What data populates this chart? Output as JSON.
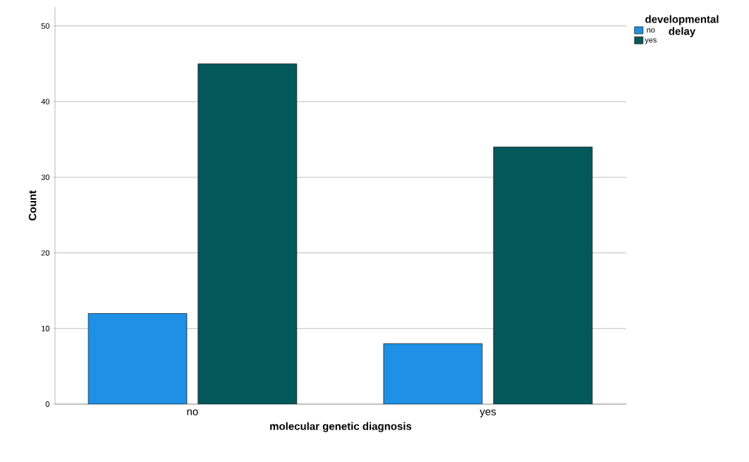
{
  "chart_data": {
    "type": "bar",
    "xlabel": "molecular genetic diagnosis",
    "ylabel": "Count",
    "legend_title": "developmental delay",
    "categories": [
      "no",
      "yes"
    ],
    "series": [
      {
        "name": "no",
        "color": "#1e90e6",
        "values": [
          12,
          8
        ]
      },
      {
        "name": "yes",
        "color": "#03585a",
        "values": [
          45,
          34
        ]
      }
    ],
    "ylim": [
      0,
      52.5
    ],
    "yticks": [
      0,
      10,
      20,
      30,
      40,
      50
    ],
    "grid": "y",
    "legend": "top right"
  }
}
